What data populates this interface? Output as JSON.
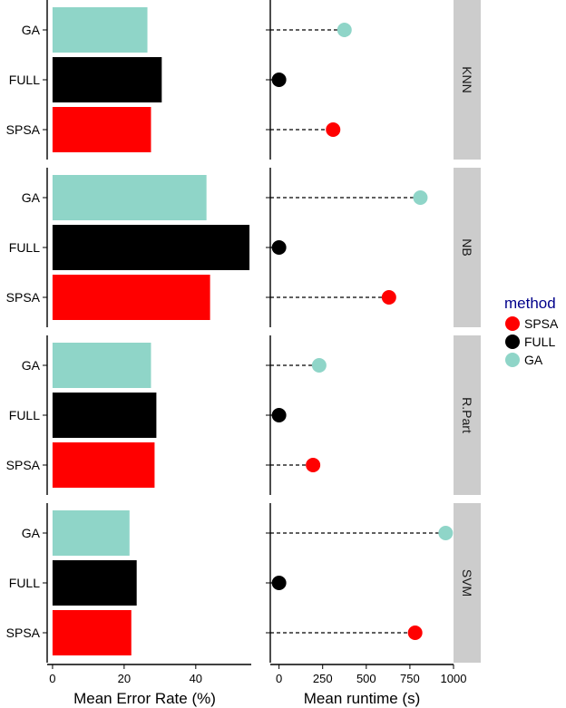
{
  "chart_data": {
    "type": "bar",
    "facets": [
      "KNN",
      "NB",
      "R.Part",
      "SVM"
    ],
    "categories": [
      "GA",
      "FULL",
      "SPSA"
    ],
    "panels": [
      {
        "name": "error",
        "type": "bar",
        "xlabel": "Mean Error Rate (%)",
        "xlim": [
          -1.5,
          55.5
        ],
        "xticks": [
          0,
          20,
          40
        ],
        "values": {
          "KNN": {
            "GA": 26.5,
            "FULL": 30.5,
            "SPSA": 27.5
          },
          "NB": {
            "GA": 43.0,
            "FULL": 55.0,
            "SPSA": 44.0
          },
          "R.Part": {
            "GA": 27.5,
            "FULL": 29.0,
            "SPSA": 28.5
          },
          "SVM": {
            "GA": 21.5,
            "FULL": 23.5,
            "SPSA": 22.0
          }
        }
      },
      {
        "name": "runtime",
        "type": "dot",
        "xlabel": "Mean runtime (s)",
        "xlim": [
          -50,
          1000
        ],
        "xticks": [
          0,
          250,
          500,
          750,
          1000
        ],
        "values": {
          "KNN": {
            "GA": 375,
            "FULL": 0,
            "SPSA": 310
          },
          "NB": {
            "GA": 810,
            "FULL": 0,
            "SPSA": 630
          },
          "R.Part": {
            "GA": 230,
            "FULL": 0,
            "SPSA": 195
          },
          "SVM": {
            "GA": 955,
            "FULL": 0,
            "SPSA": 780
          }
        }
      }
    ],
    "legend": {
      "title": "method",
      "entries": [
        "SPSA",
        "FULL",
        "GA"
      ],
      "placement": "right"
    },
    "colors": {
      "SPSA": "#ff0000",
      "FULL": "#000000",
      "GA": "#8fd5c8"
    },
    "grid": false
  }
}
